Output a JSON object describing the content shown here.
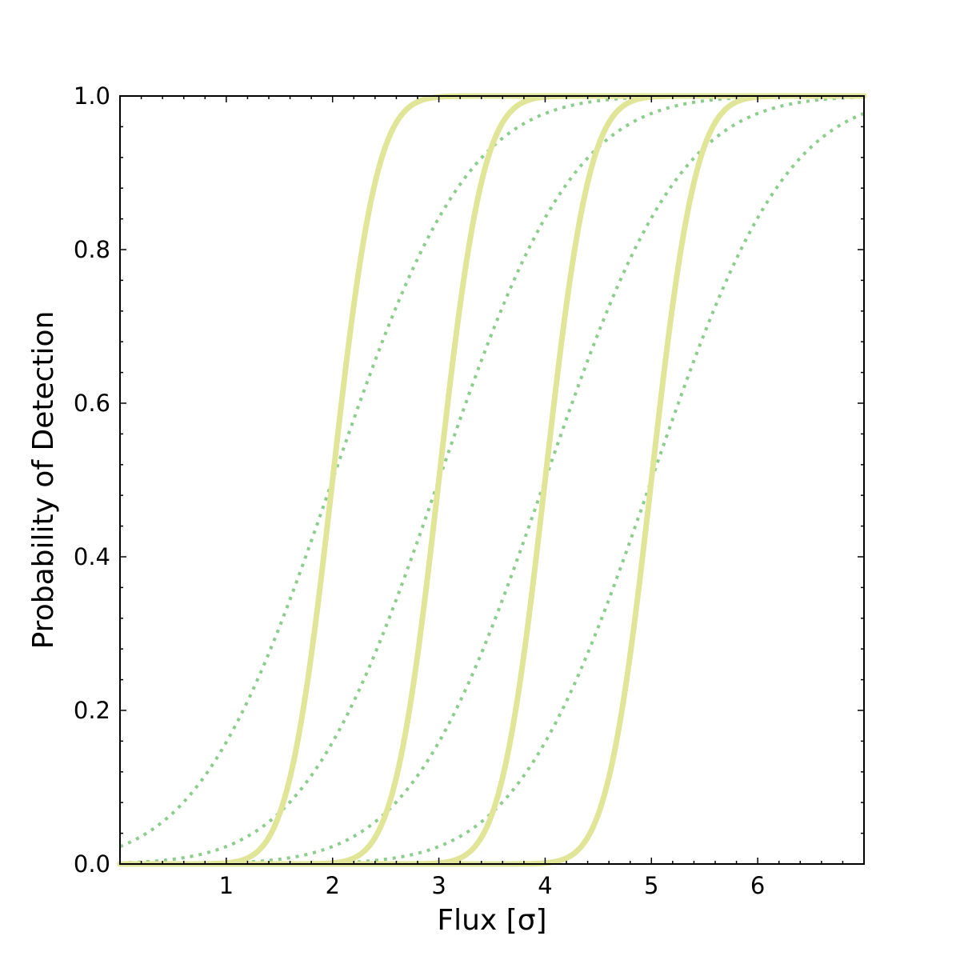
{
  "chart_data": {
    "type": "line",
    "title": "",
    "xlabel": "Flux [σ]",
    "ylabel": "Probability of Detection",
    "xlim": [
      0,
      7
    ],
    "ylim": [
      0,
      1
    ],
    "x_ticks": [
      1,
      2,
      3,
      4,
      5,
      6
    ],
    "x_tick_labels": [
      "1",
      "2",
      "3",
      "4",
      "5",
      "6"
    ],
    "y_ticks": [
      0.0,
      0.2,
      0.4,
      0.6,
      0.8,
      1.0
    ],
    "y_tick_labels": [
      "0.0",
      "0.2",
      "0.4",
      "0.6",
      "0.8",
      "1.0"
    ],
    "grid": false,
    "legend": "none",
    "series_colors": {
      "solid": "#e1e597",
      "dotted": "#8ccc8c"
    },
    "curve_model": "cumulative normal: P(flux) = Phi((flux - center) / width)",
    "series": [
      {
        "style": "solid",
        "center": 2,
        "width": 0.33
      },
      {
        "style": "solid",
        "center": 3,
        "width": 0.33
      },
      {
        "style": "solid",
        "center": 4,
        "width": 0.33
      },
      {
        "style": "solid",
        "center": 5,
        "width": 0.33
      },
      {
        "style": "dotted",
        "center": 2,
        "width": 1.0
      },
      {
        "style": "dotted",
        "center": 3,
        "width": 1.0
      },
      {
        "style": "dotted",
        "center": 4,
        "width": 1.0
      },
      {
        "style": "dotted",
        "center": 5,
        "width": 1.0
      }
    ]
  }
}
